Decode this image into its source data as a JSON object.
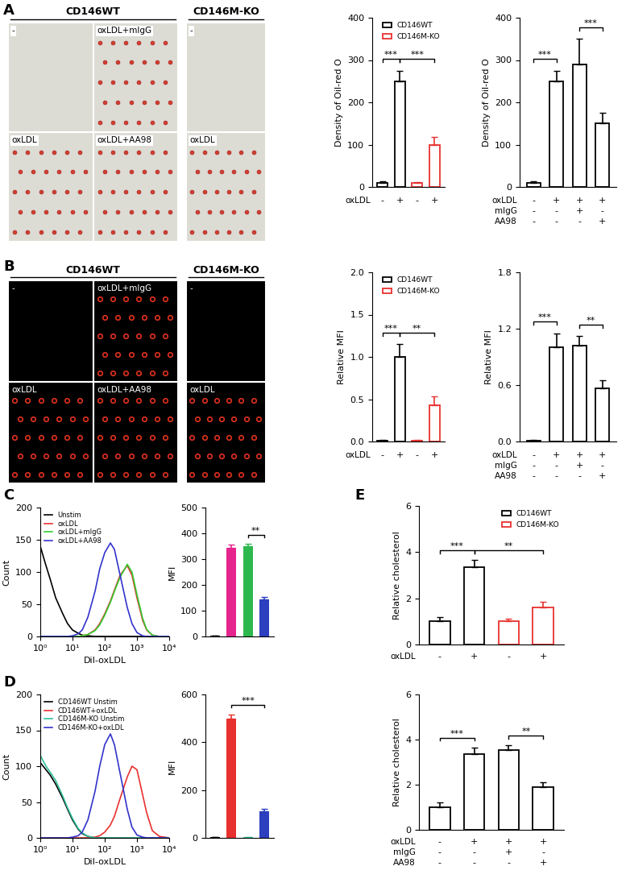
{
  "panel_letters": [
    "A",
    "B",
    "C",
    "D",
    "E"
  ],
  "image_panels": [
    {
      "headers": [
        "CD146WT",
        "CD146M-KO"
      ],
      "cells": [
        [
          "-",
          "oxLDL+mIgG",
          "-"
        ],
        [
          "oxLDL",
          "oxLDL+AA98",
          "oxLDL"
        ]
      ]
    },
    {
      "headers": [
        "CD146WT",
        "CD146M-KO"
      ],
      "cells": [
        [
          "-",
          "oxLDL+mIgG",
          "-"
        ],
        [
          "oxLDL",
          "oxLDL+AA98",
          "oxLDL"
        ]
      ]
    }
  ],
  "chart_data": [
    {
      "type": "bar",
      "ylabel": "Density of Oil-red O",
      "ylim": [
        0,
        400
      ],
      "yticks": [
        0,
        100,
        200,
        300,
        400
      ],
      "legend": "upper right",
      "series": [
        {
          "name": "CD146WT",
          "color": "#000000",
          "values": [
            10,
            250,
            null,
            null
          ],
          "errors": [
            3,
            25,
            null,
            null
          ]
        },
        {
          "name": "CD146M-KO",
          "color": "#e8312f",
          "values": [
            null,
            null,
            10,
            100
          ],
          "errors": [
            null,
            null,
            2,
            18
          ]
        }
      ],
      "condition_rows": [
        {
          "label": "oxLDL",
          "marks": [
            "-",
            "+",
            "-",
            "+"
          ]
        }
      ],
      "significance": [
        {
          "from": 0,
          "to": 1,
          "label": "***"
        },
        {
          "from": 1,
          "to": 3,
          "label": "***"
        }
      ]
    },
    {
      "type": "bar",
      "ylabel": "Density of Oil-red O",
      "ylim": [
        0,
        400
      ],
      "yticks": [
        0,
        100,
        200,
        300,
        400
      ],
      "color": "#000000",
      "values": [
        10,
        250,
        290,
        150
      ],
      "errors": [
        3,
        25,
        60,
        25
      ],
      "condition_rows": [
        {
          "label": "oxLDL",
          "marks": [
            "-",
            "+",
            "+",
            "+"
          ]
        },
        {
          "label": "mIgG",
          "marks": [
            "-",
            "-",
            "+",
            "-"
          ]
        },
        {
          "label": "AA98",
          "marks": [
            "-",
            "-",
            "-",
            "+"
          ]
        }
      ],
      "significance": [
        {
          "from": 0,
          "to": 1,
          "label": "***"
        },
        {
          "from": 2,
          "to": 3,
          "label": "***"
        }
      ]
    },
    {
      "type": "bar",
      "ylabel": "Relative MFI",
      "ylim": [
        0.0,
        2.0
      ],
      "yticks": [
        0.0,
        0.5,
        1.0,
        1.5,
        2.0
      ],
      "legend": "upper right",
      "series": [
        {
          "name": "CD146WT",
          "color": "#000000",
          "values": [
            0.01,
            1.0,
            null,
            null
          ],
          "errors": [
            0.005,
            0.15,
            null,
            null
          ]
        },
        {
          "name": "CD146M-KO",
          "color": "#e8312f",
          "values": [
            null,
            null,
            0.01,
            0.43
          ],
          "errors": [
            null,
            null,
            0.005,
            0.1
          ]
        }
      ],
      "condition_rows": [
        {
          "label": "oxLDL",
          "marks": [
            "-",
            "+",
            "-",
            "+"
          ]
        }
      ],
      "significance": [
        {
          "from": 0,
          "to": 1,
          "label": "***"
        },
        {
          "from": 1,
          "to": 3,
          "label": "**"
        }
      ]
    },
    {
      "type": "bar",
      "ylabel": "Relative MFI",
      "ylim": [
        0.0,
        1.8
      ],
      "yticks": [
        0.0,
        0.6,
        1.2,
        1.8
      ],
      "color": "#000000",
      "values": [
        0.01,
        1.0,
        1.02,
        0.57
      ],
      "errors": [
        0.005,
        0.15,
        0.1,
        0.08
      ],
      "condition_rows": [
        {
          "label": "oxLDL",
          "marks": [
            "-",
            "+",
            "+",
            "+"
          ]
        },
        {
          "label": "mIgG",
          "marks": [
            "-",
            "-",
            "+",
            "-"
          ]
        },
        {
          "label": "AA98",
          "marks": [
            "-",
            "-",
            "-",
            "+"
          ]
        }
      ],
      "significance": [
        {
          "from": 0,
          "to": 1,
          "label": "***"
        },
        {
          "from": 2,
          "to": 3,
          "label": "**"
        }
      ]
    },
    {
      "type": "line",
      "log": "x",
      "xlabel": "DiI-oxLDL",
      "ylabel": "Count",
      "xlim": [
        1,
        10000
      ],
      "xticks": [
        {
          "value": 1,
          "label": "10⁰"
        },
        {
          "value": 10,
          "label": "10¹"
        },
        {
          "value": 100,
          "label": "10²"
        },
        {
          "value": 1000,
          "label": "10³"
        },
        {
          "value": 10000,
          "label": "10⁴"
        }
      ],
      "ylim": [
        0,
        200
      ],
      "yticks": [
        0,
        50,
        100,
        150,
        200
      ],
      "legend": "upper left",
      "x": [
        1,
        1.5,
        2,
        3,
        5,
        7,
        10,
        15,
        20,
        30,
        50,
        70,
        100,
        150,
        200,
        300,
        500,
        700,
        1000,
        1500,
        2000,
        3000,
        5000,
        10000
      ],
      "series": [
        {
          "name": "Unstim",
          "color": "#000000",
          "values": [
            140,
            110,
            90,
            60,
            35,
            20,
            10,
            5,
            2,
            1,
            0,
            0,
            0,
            0,
            0,
            0,
            0,
            0,
            0,
            0,
            0,
            0,
            0,
            0
          ]
        },
        {
          "name": "oxLDL",
          "color": "#e8312f",
          "values": [
            0,
            0,
            0,
            0,
            0,
            0,
            0,
            0,
            1,
            3,
            10,
            20,
            35,
            55,
            72,
            95,
            110,
            95,
            60,
            25,
            10,
            2,
            0,
            0
          ]
        },
        {
          "name": "oxLDL+mIgG",
          "color": "#33cc33",
          "values": [
            0,
            0,
            0,
            0,
            0,
            0,
            0,
            0,
            1,
            3,
            9,
            18,
            33,
            53,
            70,
            92,
            112,
            100,
            65,
            28,
            11,
            2,
            0,
            0
          ]
        },
        {
          "name": "oxLDL+AA98",
          "color": "#3333cc",
          "values": [
            0,
            0,
            0,
            0,
            0,
            0,
            1,
            4,
            10,
            30,
            70,
            105,
            130,
            145,
            135,
            95,
            45,
            20,
            6,
            1,
            0,
            0,
            0,
            0
          ]
        }
      ]
    },
    {
      "type": "bar",
      "ylabel": "MFI",
      "ylim": [
        0,
        500
      ],
      "yticks": [
        0,
        100,
        200,
        300,
        400,
        500
      ],
      "tick_labels": "y",
      "colors": [
        "#000000",
        "#e6248e",
        "#2db84d",
        "#2b3fbf"
      ],
      "values": [
        3,
        345,
        350,
        145
      ],
      "errors": [
        1,
        12,
        8,
        8
      ],
      "significance": [
        {
          "from": 2,
          "to": 3,
          "label": "**"
        }
      ]
    },
    {
      "type": "line",
      "log": "x",
      "xlabel": "DiI-oxLDL",
      "ylabel": "Count",
      "xlim": [
        1,
        10000
      ],
      "xticks": [
        {
          "value": 1,
          "label": "10⁰"
        },
        {
          "value": 10,
          "label": "10¹"
        },
        {
          "value": 100,
          "label": "10²"
        },
        {
          "value": 1000,
          "label": "10³"
        },
        {
          "value": 10000,
          "label": "10⁴"
        }
      ],
      "ylim": [
        0,
        200
      ],
      "yticks": [
        0,
        50,
        100,
        150,
        200
      ],
      "legend": "upper left",
      "x": [
        1,
        1.5,
        2,
        3,
        5,
        7,
        10,
        15,
        20,
        30,
        50,
        70,
        100,
        150,
        200,
        300,
        500,
        700,
        1000,
        1500,
        2000,
        3000,
        5000,
        10000
      ],
      "series": [
        {
          "name": "CD146WT Unstim",
          "color": "#000000",
          "values": [
            105,
            95,
            88,
            75,
            55,
            40,
            25,
            12,
            6,
            2,
            0,
            0,
            0,
            0,
            0,
            0,
            0,
            0,
            0,
            0,
            0,
            0,
            0,
            0
          ]
        },
        {
          "name": "CD146WT+oxLDL",
          "color": "#e8312f",
          "values": [
            0,
            0,
            0,
            0,
            0,
            0,
            0,
            0,
            0,
            0,
            1,
            3,
            8,
            18,
            30,
            55,
            85,
            100,
            95,
            60,
            35,
            10,
            2,
            0
          ]
        },
        {
          "name": "CD146M-KO Unstim",
          "color": "#2fbf9a",
          "values": [
            115,
            100,
            92,
            80,
            58,
            42,
            27,
            13,
            7,
            2,
            0,
            0,
            0,
            0,
            0,
            0,
            0,
            0,
            0,
            0,
            0,
            0,
            0,
            0
          ]
        },
        {
          "name": "CD146M-KO+oxLDL",
          "color": "#3333cc",
          "values": [
            0,
            0,
            0,
            0,
            0,
            0,
            1,
            3,
            8,
            25,
            65,
            100,
            130,
            145,
            130,
            90,
            40,
            15,
            4,
            1,
            0,
            0,
            0,
            0
          ]
        }
      ]
    },
    {
      "type": "bar",
      "ylabel": "MFI",
      "ylim": [
        0,
        600
      ],
      "yticks": [
        0,
        200,
        400,
        600
      ],
      "tick_labels": "y",
      "colors": [
        "#000000",
        "#e8312f",
        "#2fbf9a",
        "#2b3fbf"
      ],
      "values": [
        3,
        500,
        3,
        110
      ],
      "errors": [
        1,
        15,
        1,
        10
      ],
      "significance": [
        {
          "from": 1,
          "to": 3,
          "label": "***"
        }
      ]
    },
    {
      "type": "bar",
      "ylabel": "Relative cholesterol",
      "ylim": [
        0,
        6
      ],
      "yticks": [
        0,
        2,
        4,
        6
      ],
      "legend": "upper right",
      "series": [
        {
          "name": "CD146WT",
          "color": "#000000",
          "values": [
            1,
            3.35,
            null,
            null
          ],
          "errors": [
            0.2,
            0.3,
            null,
            null
          ]
        },
        {
          "name": "CD146M-KO",
          "color": "#e8312f",
          "values": [
            null,
            null,
            1,
            1.6
          ],
          "errors": [
            null,
            null,
            0.12,
            0.25
          ]
        }
      ],
      "condition_rows": [
        {
          "label": "oxLDL",
          "marks": [
            "-",
            "+",
            "-",
            "+"
          ]
        }
      ],
      "significance": [
        {
          "from": 0,
          "to": 1,
          "label": "***"
        },
        {
          "from": 1,
          "to": 3,
          "label": "**"
        }
      ]
    },
    {
      "type": "bar",
      "ylabel": "Relative cholesterol",
      "ylim": [
        0,
        6
      ],
      "yticks": [
        0,
        2,
        4,
        6
      ],
      "color": "#000000",
      "values": [
        1,
        3.35,
        3.55,
        1.9
      ],
      "errors": [
        0.2,
        0.3,
        0.2,
        0.2
      ],
      "condition_rows": [
        {
          "label": "oxLDL",
          "marks": [
            "-",
            "+",
            "+",
            "+"
          ]
        },
        {
          "label": "mIgG",
          "marks": [
            "-",
            "-",
            "+",
            "-"
          ]
        },
        {
          "label": "AA98",
          "marks": [
            "-",
            "-",
            "-",
            "+"
          ]
        }
      ],
      "significance": [
        {
          "from": 0,
          "to": 1,
          "label": "***"
        },
        {
          "from": 2,
          "to": 3,
          "label": "**"
        }
      ]
    }
  ]
}
